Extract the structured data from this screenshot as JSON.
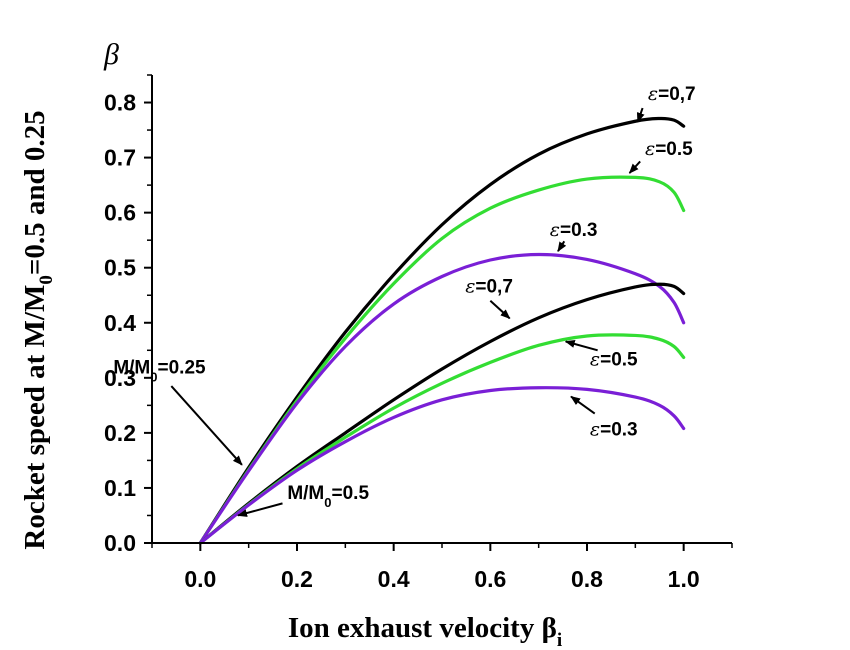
{
  "chart_data": {
    "type": "line",
    "xlabel": "Ion exhaust velocity β",
    "xlabel_subscript": "i",
    "ylabel": "Rocket speed at M/M",
    "ylabel_subscript": "0",
    "ylabel_suffix": "=0.5 and 0.25",
    "y_axis_symbol": "β",
    "xlim": [
      -0.1,
      1.1
    ],
    "ylim": [
      0.0,
      0.85
    ],
    "x_ticks": [
      "0.0",
      "0.2",
      "0.4",
      "0.6",
      "0.8",
      "1.0"
    ],
    "y_ticks": [
      "0.0",
      "0.1",
      "0.2",
      "0.3",
      "0.4",
      "0.5",
      "0.6",
      "0.7",
      "0.8"
    ],
    "colors": {
      "eps07": "#000000",
      "eps05": "#33dd33",
      "eps03": "#7a1fd6"
    },
    "series": [
      {
        "group": "M/M0=0.25",
        "eps": "0.7",
        "color": "#000000",
        "x": [
          0,
          0.1,
          0.2,
          0.3,
          0.4,
          0.5,
          0.6,
          0.7,
          0.8,
          0.9,
          0.95,
          0.98,
          1.0
        ],
        "y": [
          0,
          0.137,
          0.265,
          0.383,
          0.487,
          0.578,
          0.651,
          0.706,
          0.743,
          0.766,
          0.771,
          0.768,
          0.757
        ]
      },
      {
        "group": "M/M0=0.25",
        "eps": "0.5",
        "color": "#33dd33",
        "x": [
          0,
          0.1,
          0.2,
          0.3,
          0.4,
          0.5,
          0.6,
          0.7,
          0.8,
          0.9,
          0.95,
          0.98,
          1.0
        ],
        "y": [
          0,
          0.133,
          0.259,
          0.372,
          0.471,
          0.553,
          0.608,
          0.641,
          0.661,
          0.664,
          0.656,
          0.637,
          0.604
        ]
      },
      {
        "group": "M/M0=0.25",
        "eps": "0.3",
        "color": "#7a1fd6",
        "x": [
          0,
          0.1,
          0.2,
          0.3,
          0.4,
          0.5,
          0.6,
          0.7,
          0.8,
          0.9,
          0.95,
          0.98,
          1.0
        ],
        "y": [
          0,
          0.131,
          0.254,
          0.357,
          0.434,
          0.484,
          0.514,
          0.524,
          0.515,
          0.489,
          0.466,
          0.437,
          0.4
        ]
      },
      {
        "group": "M/M0=0.5",
        "eps": "0.7",
        "color": "#000000",
        "x": [
          0,
          0.1,
          0.2,
          0.3,
          0.4,
          0.5,
          0.6,
          0.7,
          0.8,
          0.9,
          0.95,
          0.98,
          1.0
        ],
        "y": [
          0,
          0.072,
          0.139,
          0.2,
          0.26,
          0.316,
          0.366,
          0.409,
          0.442,
          0.465,
          0.47,
          0.466,
          0.453
        ]
      },
      {
        "group": "M/M0=0.5",
        "eps": "0.5",
        "color": "#33dd33",
        "x": [
          0,
          0.1,
          0.2,
          0.3,
          0.4,
          0.5,
          0.6,
          0.7,
          0.8,
          0.9,
          0.95,
          0.98,
          1.0
        ],
        "y": [
          0,
          0.07,
          0.135,
          0.192,
          0.245,
          0.29,
          0.328,
          0.359,
          0.376,
          0.377,
          0.37,
          0.357,
          0.337
        ]
      },
      {
        "group": "M/M0=0.5",
        "eps": "0.3",
        "color": "#7a1fd6",
        "x": [
          0,
          0.1,
          0.2,
          0.3,
          0.4,
          0.5,
          0.6,
          0.7,
          0.8,
          0.9,
          0.95,
          0.98,
          1.0
        ],
        "y": [
          0,
          0.069,
          0.132,
          0.184,
          0.228,
          0.26,
          0.277,
          0.282,
          0.279,
          0.265,
          0.25,
          0.231,
          0.208
        ]
      }
    ],
    "annotations": [
      {
        "prefix": "ε",
        "text": "=0,7",
        "sub": "",
        "suffix": "",
        "x": 0.926,
        "y": 0.805,
        "arrow": [
          0.915,
          0.79,
          0.905,
          0.765
        ]
      },
      {
        "prefix": "ε",
        "text": "=0.5",
        "sub": "",
        "suffix": "",
        "x": 0.92,
        "y": 0.705,
        "arrow": [
          0.91,
          0.693,
          0.888,
          0.672
        ]
      },
      {
        "prefix": "ε",
        "text": "=0.3",
        "sub": "",
        "suffix": "",
        "x": 0.723,
        "y": 0.558,
        "arrow": [
          0.753,
          0.548,
          0.74,
          0.53
        ]
      },
      {
        "prefix": "ε",
        "text": "=0,7",
        "sub": "",
        "suffix": "",
        "x": 0.548,
        "y": 0.455,
        "arrow": [
          0.6,
          0.44,
          0.64,
          0.408
        ]
      },
      {
        "prefix": "ε",
        "text": "=0.5",
        "sub": "",
        "suffix": "",
        "x": 0.806,
        "y": 0.322,
        "arrow": [
          0.822,
          0.35,
          0.756,
          0.366
        ]
      },
      {
        "prefix": "ε",
        "text": "=0.3",
        "sub": "",
        "suffix": "",
        "x": 0.806,
        "y": 0.195,
        "arrow": [
          0.816,
          0.235,
          0.767,
          0.266
        ]
      },
      {
        "prefix": "",
        "text": "M/M",
        "sub": "0",
        "suffix": "=0.25",
        "x": -0.18,
        "y": 0.308,
        "arrow": [
          -0.06,
          0.285,
          0.086,
          0.142
        ]
      },
      {
        "prefix": "",
        "text": "M/M",
        "sub": "0",
        "suffix": "=0.5",
        "x": 0.18,
        "y": 0.08,
        "arrow": [
          0.17,
          0.072,
          0.078,
          0.05
        ]
      }
    ]
  }
}
